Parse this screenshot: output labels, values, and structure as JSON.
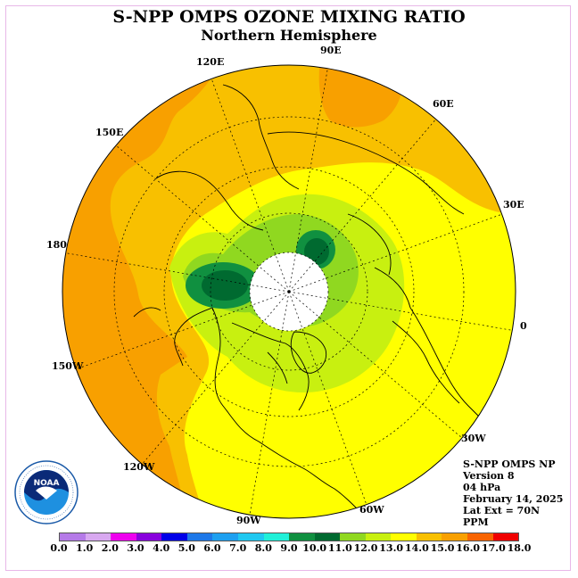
{
  "title": "S-NPP OMPS OZONE MIXING RATIO",
  "subtitle": "Northern Hemisphere",
  "longitude_labels": [
    "90E",
    "60E",
    "30E",
    "0",
    "30W",
    "60W",
    "90W",
    "120W",
    "150W",
    "180",
    "150E",
    "120E"
  ],
  "info": {
    "instrument": "S-NPP OMPS NP",
    "version": "Version 8",
    "level": "04 hPa",
    "date": "February 14, 2025",
    "lat_ext": "Lat Ext = 70N",
    "units": "PPM"
  },
  "colorbar": {
    "tick_labels": [
      "0.0",
      "1.0",
      "2.0",
      "3.0",
      "4.0",
      "5.0",
      "6.0",
      "7.0",
      "8.0",
      "9.0",
      "10.0",
      "11.0",
      "12.0",
      "13.0",
      "14.0",
      "15.0",
      "16.0",
      "17.0",
      "18.0"
    ],
    "colors": [
      "#b57ae8",
      "#d8a8f0",
      "#ee00ee",
      "#8800dd",
      "#0000e8",
      "#1e78e8",
      "#1ea0f0",
      "#20c8f0",
      "#20f0d8",
      "#109040",
      "#006a30",
      "#90d820",
      "#c8f010",
      "#ffff00",
      "#f8c000",
      "#f8a000",
      "#f86400",
      "#f00000",
      "#8a5a3a"
    ]
  },
  "map_colors": {
    "level_13_14": "#ffff00",
    "level_14_15": "#f8c000",
    "level_15_16": "#f8a000",
    "level_11_12": "#c8f010",
    "level_10_11": "#90d820",
    "level_9_10": "#006a30",
    "level_8_9": "#109040",
    "polar_gap": "#ffffff"
  },
  "logo": {
    "text": "NOAA",
    "ring_text": "NATIONAL OCEANIC AND ATMOSPHERIC ADMINISTRATION · U.S. DEPARTMENT OF COMMERCE"
  }
}
